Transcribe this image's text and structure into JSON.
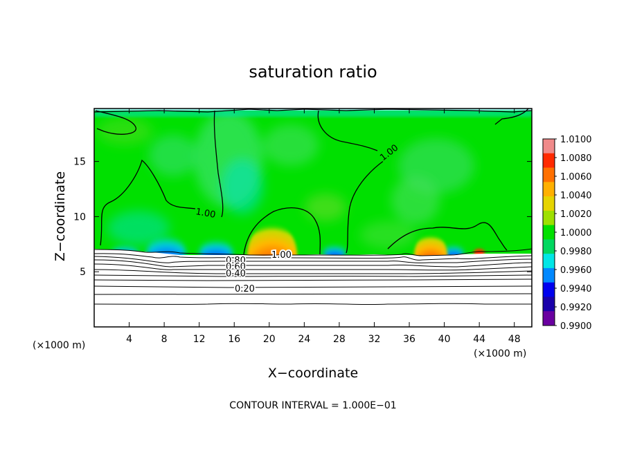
{
  "chart_data": {
    "type": "heatmap",
    "title": "saturation ratio",
    "xlabel": "X−coordinate",
    "ylabel": "Z−coordinate",
    "x_unit_left": "(×1000 m)",
    "x_unit_right": "(×1000 m)",
    "xlim": [
      0,
      50
    ],
    "ylim": [
      0,
      19.8
    ],
    "x_ticks": [
      4,
      8,
      12,
      16,
      20,
      24,
      28,
      32,
      36,
      40,
      44,
      48
    ],
    "y_ticks": [
      5,
      10,
      15
    ],
    "colorbar": {
      "min": 0.99,
      "max": 1.01,
      "labels": [
        "1.0100",
        "1.0080",
        "1.0060",
        "1.0040",
        "1.0020",
        "1.0000",
        "0.9980",
        "0.9960",
        "0.9940",
        "0.9920",
        "0.9900"
      ],
      "colors": [
        "#f08a8a",
        "#ff2a00",
        "#ff7000",
        "#ffb000",
        "#e6d400",
        "#9ee000",
        "#00e000",
        "#00d860",
        "#00e6e6",
        "#0088ff",
        "#0000ee",
        "#1a00aa",
        "#6a00a0"
      ]
    },
    "contour_labels": [
      {
        "text": "1.00",
        "x": 13.0,
        "z": 10.4,
        "angle": 10
      },
      {
        "text": "1.00",
        "x": 34.0,
        "z": 16.0,
        "angle": -38
      },
      {
        "text": "1.00",
        "x": 22.5,
        "z": 6.5,
        "angle": 0
      },
      {
        "text": "0.80",
        "x": 16.0,
        "z": 6.0,
        "angle": 0
      },
      {
        "text": "0.60",
        "x": 16.0,
        "z": 5.4,
        "angle": 0
      },
      {
        "text": "0.40",
        "x": 16.0,
        "z": 4.8,
        "angle": 0
      },
      {
        "text": "0.20",
        "x": 17.5,
        "z": 3.5,
        "angle": 0
      }
    ],
    "contour_interval_note": "CONTOUR INTERVAL = 1.000E−01"
  }
}
